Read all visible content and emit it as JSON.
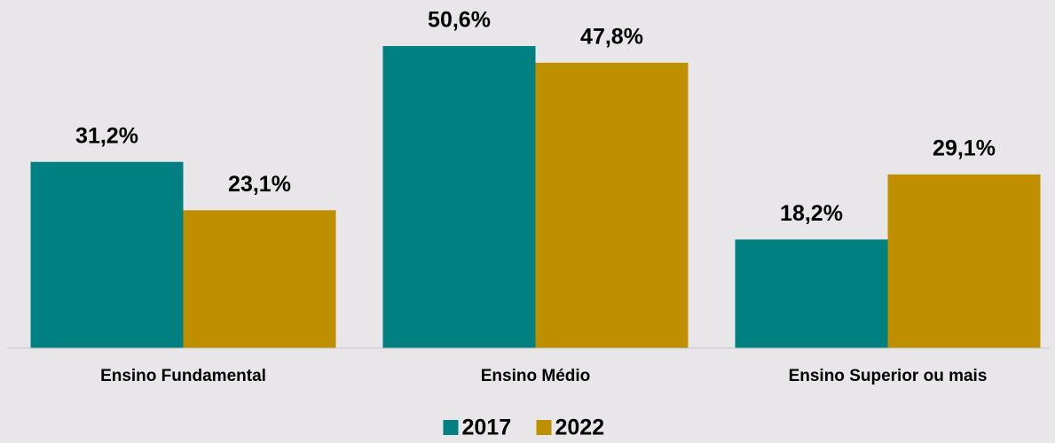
{
  "chart_data": {
    "type": "bar",
    "categories": [
      "Ensino Fundamental",
      "Ensino Médio",
      "Ensino Superior ou mais"
    ],
    "series": [
      {
        "name": "2017",
        "color": "#008080",
        "values": [
          31.2,
          50.6,
          18.2
        ],
        "value_labels": [
          "31,2%",
          "50,6%",
          "18,2%"
        ]
      },
      {
        "name": "2022",
        "color": "#bf8f00",
        "values": [
          23.1,
          47.8,
          29.1
        ],
        "value_labels": [
          "23,1%",
          "47,8%",
          "29,1%"
        ]
      }
    ],
    "legend": "bottom"
  }
}
